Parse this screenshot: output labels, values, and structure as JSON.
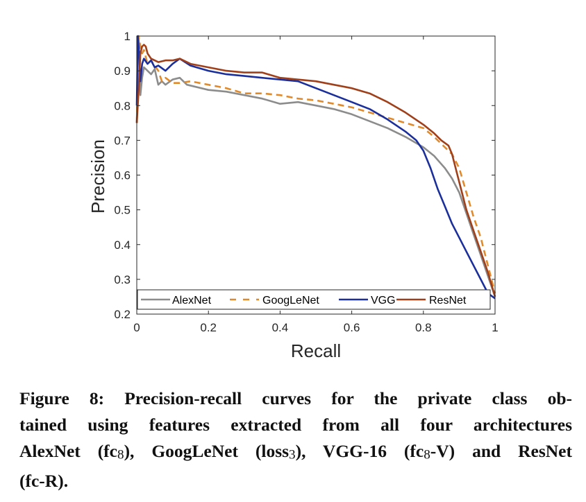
{
  "chart_data": {
    "type": "line",
    "title": "",
    "xlabel": "Recall",
    "ylabel": "Precision",
    "xlim": [
      0,
      1
    ],
    "ylim": [
      0.2,
      1
    ],
    "xticks": [
      "0",
      "0.2",
      "0.4",
      "0.6",
      "0.8",
      "1"
    ],
    "yticks": [
      "0.2",
      "0.3",
      "0.4",
      "0.5",
      "0.6",
      "0.7",
      "0.8",
      "0.9",
      "1"
    ],
    "xtick_values": [
      0,
      0.2,
      0.4,
      0.6,
      0.8,
      1
    ],
    "ytick_values": [
      0.2,
      0.3,
      0.4,
      0.5,
      0.6,
      0.7,
      0.8,
      0.9,
      1.0
    ],
    "grid": false,
    "legend": {
      "placement": "bottom",
      "orientation": "horizontal"
    },
    "series": [
      {
        "name": "AlexNet",
        "color": "#8c8c8c",
        "dash": "solid",
        "x": [
          0.0,
          0.005,
          0.01,
          0.015,
          0.02,
          0.03,
          0.04,
          0.05,
          0.06,
          0.07,
          0.08,
          0.1,
          0.12,
          0.14,
          0.16,
          0.2,
          0.25,
          0.3,
          0.35,
          0.4,
          0.45,
          0.5,
          0.55,
          0.6,
          0.65,
          0.7,
          0.75,
          0.8,
          0.83,
          0.86,
          0.88,
          0.9,
          0.92,
          0.94,
          0.96,
          0.98,
          1.0
        ],
        "y": [
          0.75,
          1.0,
          0.83,
          0.88,
          0.91,
          0.9,
          0.89,
          0.905,
          0.86,
          0.87,
          0.86,
          0.875,
          0.88,
          0.86,
          0.855,
          0.845,
          0.84,
          0.83,
          0.82,
          0.805,
          0.81,
          0.8,
          0.79,
          0.775,
          0.755,
          0.735,
          0.71,
          0.68,
          0.655,
          0.62,
          0.59,
          0.55,
          0.49,
          0.43,
          0.37,
          0.31,
          0.25
        ]
      },
      {
        "name": "GoogLeNet",
        "color": "#e08a2c",
        "dash": "dashed",
        "x": [
          0.0,
          0.005,
          0.01,
          0.015,
          0.02,
          0.03,
          0.04,
          0.06,
          0.07,
          0.08,
          0.1,
          0.12,
          0.15,
          0.2,
          0.25,
          0.3,
          0.35,
          0.4,
          0.45,
          0.5,
          0.55,
          0.6,
          0.65,
          0.7,
          0.75,
          0.8,
          0.83,
          0.86,
          0.88,
          0.9,
          0.92,
          0.94,
          0.96,
          0.98,
          1.0
        ],
        "y": [
          0.75,
          1.0,
          0.97,
          0.95,
          0.96,
          0.92,
          0.93,
          0.9,
          0.87,
          0.88,
          0.865,
          0.865,
          0.87,
          0.86,
          0.85,
          0.835,
          0.835,
          0.83,
          0.82,
          0.815,
          0.805,
          0.795,
          0.78,
          0.765,
          0.75,
          0.735,
          0.71,
          0.68,
          0.66,
          0.62,
          0.55,
          0.48,
          0.42,
          0.34,
          0.26
        ]
      },
      {
        "name": "VGG",
        "color": "#1b2f9c",
        "dash": "solid",
        "x": [
          0.0,
          0.003,
          0.006,
          0.01,
          0.015,
          0.02,
          0.03,
          0.04,
          0.05,
          0.06,
          0.08,
          0.1,
          0.12,
          0.15,
          0.2,
          0.25,
          0.3,
          0.35,
          0.4,
          0.45,
          0.5,
          0.55,
          0.6,
          0.65,
          0.7,
          0.75,
          0.78,
          0.8,
          0.82,
          0.84,
          0.86,
          0.88,
          0.9,
          0.92,
          0.94,
          0.96,
          0.98,
          1.0
        ],
        "y": [
          0.8,
          1.0,
          0.96,
          0.87,
          0.92,
          0.935,
          0.92,
          0.93,
          0.91,
          0.915,
          0.9,
          0.92,
          0.935,
          0.915,
          0.9,
          0.89,
          0.885,
          0.88,
          0.875,
          0.87,
          0.85,
          0.83,
          0.81,
          0.79,
          0.76,
          0.725,
          0.7,
          0.67,
          0.62,
          0.56,
          0.51,
          0.46,
          0.42,
          0.38,
          0.34,
          0.3,
          0.26,
          0.245
        ]
      },
      {
        "name": "ResNet",
        "color": "#a0401a",
        "dash": "solid",
        "x": [
          0.0,
          0.005,
          0.01,
          0.015,
          0.02,
          0.025,
          0.03,
          0.04,
          0.06,
          0.08,
          0.1,
          0.12,
          0.15,
          0.2,
          0.25,
          0.3,
          0.35,
          0.4,
          0.45,
          0.5,
          0.55,
          0.6,
          0.65,
          0.7,
          0.75,
          0.8,
          0.83,
          0.85,
          0.87,
          0.88,
          0.9,
          0.92,
          0.94,
          0.96,
          0.98,
          1.0
        ],
        "y": [
          0.75,
          0.84,
          0.95,
          0.97,
          0.975,
          0.97,
          0.95,
          0.935,
          0.925,
          0.93,
          0.93,
          0.935,
          0.92,
          0.91,
          0.9,
          0.895,
          0.895,
          0.88,
          0.875,
          0.87,
          0.86,
          0.85,
          0.835,
          0.81,
          0.78,
          0.745,
          0.72,
          0.7,
          0.685,
          0.66,
          0.58,
          0.5,
          0.44,
          0.38,
          0.32,
          0.25
        ]
      }
    ]
  },
  "caption": {
    "lines": [
      [
        {
          "t": "Figure 8:  Precision-recall curves for the private class ob-"
        }
      ],
      [
        {
          "t": "tained using features extracted from all four architectures"
        }
      ],
      [
        {
          "t": "AlexNet (fc"
        },
        {
          "sub": "8"
        },
        {
          "t": "), GoogLeNet (loss"
        },
        {
          "sub": "3"
        },
        {
          "t": "), VGG-16 (fc"
        },
        {
          "sub": "8"
        },
        {
          "t": "-V) and ResNet"
        }
      ],
      [
        {
          "t": "(fc-R)."
        }
      ]
    ]
  }
}
